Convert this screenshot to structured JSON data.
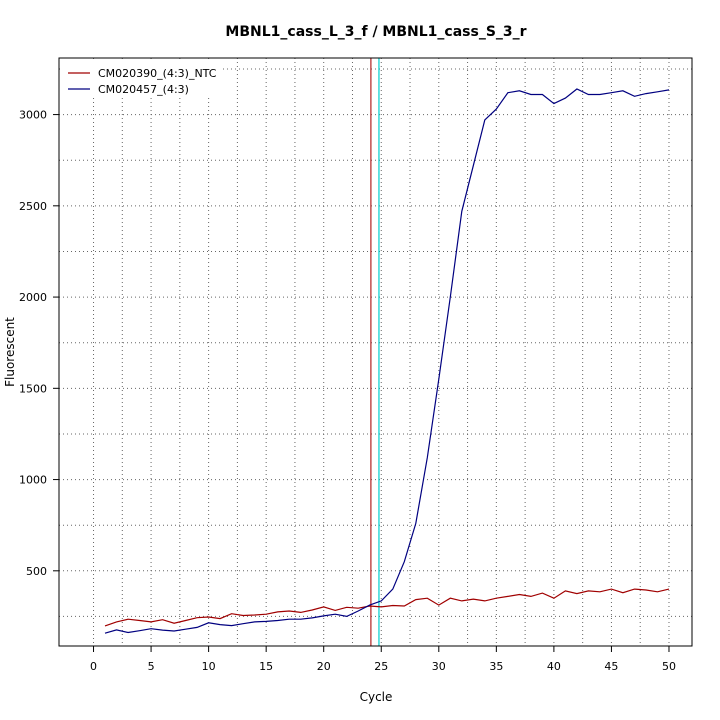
{
  "chart_data": {
    "type": "line",
    "title": "MBNL1_cass_L_3_f / MBNL1_cass_S_3_r",
    "xlabel": "Cycle",
    "ylabel": "Fluorescent",
    "xlim": [
      -3,
      52
    ],
    "ylim": [
      88,
      3310
    ],
    "x_ticks": [
      0,
      5,
      10,
      15,
      20,
      25,
      30,
      35,
      40,
      45,
      50
    ],
    "y_ticks": [
      500,
      1000,
      1500,
      2000,
      2500,
      3000
    ],
    "grid": "dotted",
    "legend_position": "top-left",
    "threshold_lines": [
      {
        "x": 24.1,
        "color": "#b22222"
      },
      {
        "x": 24.8,
        "color": "#00cccc"
      }
    ],
    "x": [
      1,
      2,
      3,
      4,
      5,
      6,
      7,
      8,
      9,
      10,
      11,
      12,
      13,
      14,
      15,
      16,
      17,
      18,
      19,
      20,
      21,
      22,
      23,
      24,
      25,
      26,
      27,
      28,
      29,
      30,
      31,
      32,
      33,
      34,
      35,
      36,
      37,
      38,
      39,
      40,
      41,
      42,
      43,
      44,
      45,
      46,
      47,
      48,
      49,
      50
    ],
    "series": [
      {
        "name": "CM020390_(4:3)_NTC",
        "color": "#a00000",
        "values": [
          198,
          220,
          235,
          228,
          220,
          232,
          213,
          228,
          243,
          247,
          238,
          265,
          255,
          258,
          262,
          275,
          280,
          272,
          285,
          302,
          283,
          300,
          295,
          307,
          302,
          310,
          307,
          342,
          350,
          312,
          350,
          335,
          345,
          335,
          350,
          360,
          370,
          360,
          378,
          350,
          390,
          375,
          390,
          385,
          400,
          380,
          400,
          395,
          385,
          400
        ]
      },
      {
        "name": "CM020457_(4:3)",
        "color": "#000080",
        "values": [
          158,
          176,
          162,
          172,
          183,
          175,
          170,
          180,
          190,
          215,
          205,
          200,
          210,
          220,
          223,
          228,
          235,
          235,
          242,
          253,
          262,
          250,
          280,
          312,
          335,
          400,
          550,
          760,
          1120,
          1550,
          2000,
          2470,
          2720,
          2970,
          3030,
          3120,
          3130,
          3110,
          3110,
          3060,
          3090,
          3140,
          3110,
          3110,
          3120,
          3130,
          3100,
          3115,
          3125,
          3135
        ]
      }
    ]
  }
}
